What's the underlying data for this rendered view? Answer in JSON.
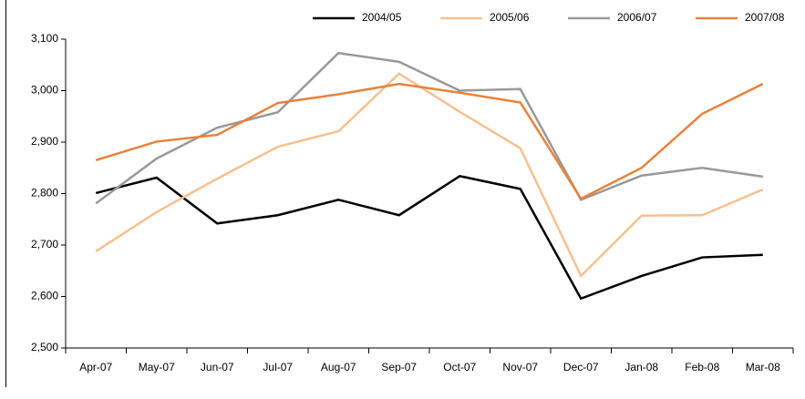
{
  "chart_data": {
    "type": "line",
    "categories": [
      "Apr-07",
      "May-07",
      "Jun-07",
      "Jul-07",
      "Aug-07",
      "Sep-07",
      "Oct-07",
      "Nov-07",
      "Dec-07",
      "Jan-08",
      "Feb-08",
      "Mar-08"
    ],
    "series": [
      {
        "name": "2004/05",
        "color": "#000000",
        "values": [
          2801,
          2831,
          2742,
          2758,
          2788,
          2758,
          2834,
          2809,
          2596,
          2640,
          2676,
          2681
        ]
      },
      {
        "name": "2005/06",
        "color": "#f8c08f",
        "values": [
          2688,
          2764,
          2829,
          2891,
          2921,
          3033,
          2959,
          2888,
          2640,
          2757,
          2758,
          2808
        ]
      },
      {
        "name": "2006/07",
        "color": "#999999",
        "values": [
          2781,
          2868,
          2928,
          2958,
          3073,
          3056,
          3000,
          3003,
          2788,
          2835,
          2850,
          2833
        ]
      },
      {
        "name": "2007/08",
        "color": "#e8823a",
        "values": [
          2865,
          2901,
          2914,
          2976,
          2993,
          3013,
          2996,
          2977,
          2790,
          2850,
          2955,
          3013
        ]
      }
    ],
    "ylim": [
      2500,
      3100
    ],
    "yticks": [
      {
        "value": 2500,
        "label": "2,500"
      },
      {
        "value": 2600,
        "label": "2,600"
      },
      {
        "value": 2700,
        "label": "2,700"
      },
      {
        "value": 2800,
        "label": "2,800"
      },
      {
        "value": 2900,
        "label": "2,900"
      },
      {
        "value": 3000,
        "label": "3,000"
      },
      {
        "value": 3100,
        "label": "3,100"
      }
    ],
    "legend": "top"
  }
}
